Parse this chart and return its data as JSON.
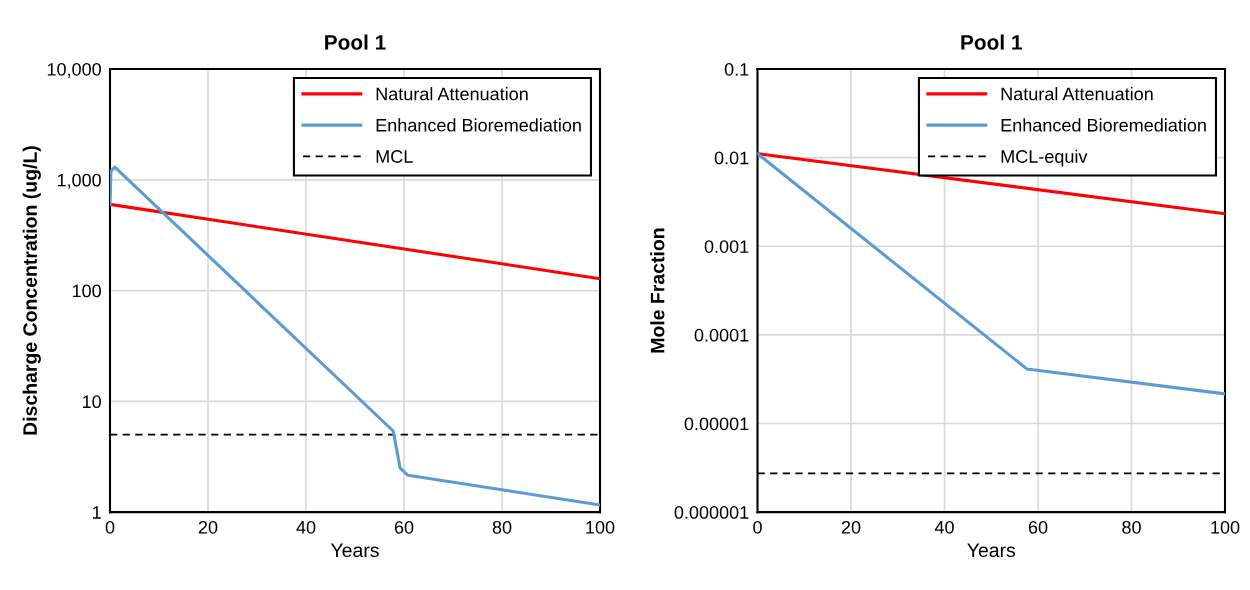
{
  "chart_data": [
    {
      "type": "line",
      "title": "Pool 1",
      "xlabel": "Years",
      "ylabel": "Discharge Concentration (ug/L)",
      "log": "y",
      "grid": true,
      "legend": "top right",
      "line_style": "solid",
      "marker": "none",
      "xlim": [
        0,
        100
      ],
      "xticks": [
        0,
        20,
        40,
        60,
        80,
        100
      ],
      "ylim": [
        1,
        10000
      ],
      "yticks": [
        1,
        10,
        100,
        {
          "value": 1000,
          "label": "1,000"
        },
        {
          "value": 10000,
          "label": "10,000"
        }
      ],
      "series": [
        {
          "name": "Natural Attenuation",
          "color": "#ff0000",
          "x": [
            0,
            100
          ],
          "values": [
            600,
            128
          ]
        },
        {
          "name": "Enhanced Bioremediation",
          "color": "#5b9bd5",
          "x": [
            0,
            0.2,
            1,
            57.8,
            59.2,
            60.8,
            100
          ],
          "values": [
            600,
            1200,
            1300,
            5.4,
            2.5,
            2.15,
            1.16
          ]
        }
      ],
      "ref_lines": [
        {
          "axis": "y",
          "value": 5,
          "label": "MCL",
          "color": "#000000",
          "line_style": "dashed"
        }
      ]
    },
    {
      "type": "line",
      "title": "Pool 1",
      "xlabel": "Years",
      "ylabel": "Mole Fraction",
      "log": "y",
      "grid": true,
      "legend": "top right",
      "line_style": "solid",
      "marker": "none",
      "xlim": [
        0,
        100
      ],
      "xticks": [
        0,
        20,
        40,
        60,
        80,
        100
      ],
      "ylim": [
        1e-06,
        0.1
      ],
      "yticks": [
        {
          "value": 1e-06,
          "label": "0.000001"
        },
        {
          "value": 1e-05,
          "label": "0.00001"
        },
        {
          "value": 0.0001,
          "label": "0.0001"
        },
        {
          "value": 0.001,
          "label": "0.001"
        },
        {
          "value": 0.01,
          "label": "0.01"
        },
        {
          "value": 0.1,
          "label": "0.1"
        }
      ],
      "series": [
        {
          "name": "Natural Attenuation",
          "color": "#ff0000",
          "x": [
            0,
            100
          ],
          "values": [
            0.0111,
            0.00233
          ]
        },
        {
          "name": "Enhanced Bioremediation",
          "color": "#5b9bd5",
          "x": [
            0,
            57.6,
            100
          ],
          "values": [
            0.0111,
            4.13e-05,
            2.16e-05
          ]
        }
      ],
      "ref_lines": [
        {
          "axis": "y",
          "value": 2.73e-06,
          "label": "MCL-equiv",
          "color": "#000000",
          "line_style": "dashed"
        }
      ]
    }
  ]
}
